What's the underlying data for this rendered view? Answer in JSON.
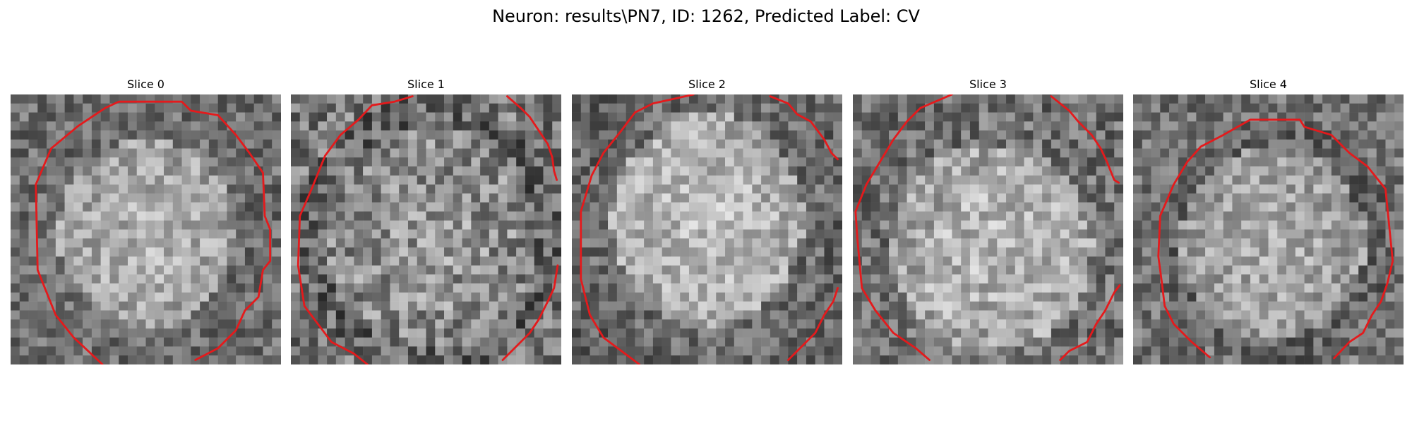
{
  "figure": {
    "title": "Neuron: results\\PN7, ID: 1262, Predicted Label: CV"
  },
  "colors": {
    "contour": "#e41a1c",
    "background": "#ffffff"
  },
  "panels": [
    {
      "title": "Slice 0"
    },
    {
      "title": "Slice 1"
    },
    {
      "title": "Slice 2"
    },
    {
      "title": "Slice 3"
    },
    {
      "title": "Slice 4"
    }
  ]
}
